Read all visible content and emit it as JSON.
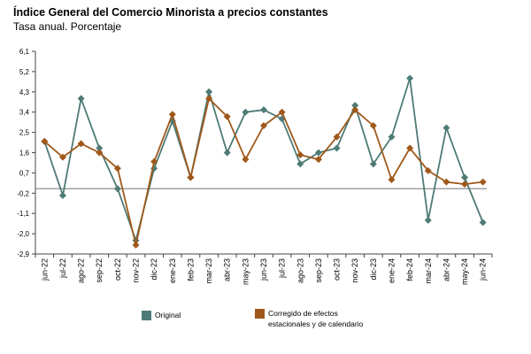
{
  "title": "Índice General del Comercio Minorista a precios constantes",
  "subtitle": "Tasa anual. Porcentaje",
  "chart_data": {
    "type": "line",
    "categories": [
      "jun-22",
      "jul-22",
      "ago-22",
      "sep-22",
      "oct-22",
      "nov-22",
      "dic-22",
      "ene-23",
      "feb-23",
      "mar-23",
      "abr-23",
      "may-23",
      "jun-23",
      "jul-23",
      "ago-23",
      "sep-23",
      "oct-23",
      "nov-23",
      "dic-23",
      "ene-24",
      "feb-24",
      "mar-24",
      "abr-24",
      "may-24",
      "jun-24"
    ],
    "y_ticks": [
      "6,1",
      "5,2",
      "4,3",
      "3,4",
      "2,5",
      "1,6",
      "0,7",
      "-0,2",
      "-1,1",
      "-2,0",
      "-2,9"
    ],
    "ylim": [
      -2.9,
      6.1
    ],
    "grid": false,
    "legend_position": "bottom",
    "series": [
      {
        "name": "Original",
        "color": "#4e7b76",
        "values": [
          2.1,
          -0.3,
          4.0,
          1.8,
          0.0,
          -2.3,
          0.9,
          3.0,
          0.5,
          4.3,
          1.6,
          3.4,
          3.5,
          3.1,
          1.1,
          1.6,
          1.8,
          3.7,
          1.1,
          2.3,
          4.9,
          -1.4,
          2.7,
          0.5,
          -1.5
        ]
      },
      {
        "name": "Corregido de efectos estacionales y de calendario",
        "color": "#a0581a",
        "values": [
          2.1,
          1.4,
          2.0,
          1.6,
          0.9,
          -2.5,
          1.2,
          3.3,
          0.5,
          4.0,
          3.2,
          1.3,
          2.8,
          3.4,
          1.5,
          1.3,
          2.3,
          3.5,
          2.8,
          0.4,
          1.8,
          0.8,
          0.3,
          0.2,
          0.3
        ]
      }
    ]
  }
}
